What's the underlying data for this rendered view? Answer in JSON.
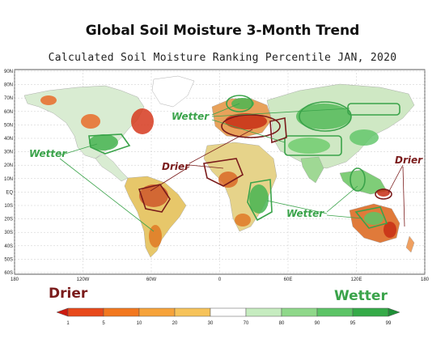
{
  "title": "Global Soil Moisture 3-Month Trend",
  "subtitle": "Calculated Soil Moisture Ranking Percentile JAN, 2020",
  "map": {
    "lat_ticks": [
      "90N",
      "80N",
      "70N",
      "60N",
      "50N",
      "40N",
      "30N",
      "20N",
      "10N",
      "EQ",
      "10S",
      "20S",
      "30S",
      "40S",
      "50S",
      "60S"
    ],
    "lon_ticks": [
      "180",
      "120W",
      "60W",
      "0",
      "60E",
      "120E",
      "180"
    ],
    "annotations": [
      {
        "text": "Wetter",
        "color": "#3aa34a"
      },
      {
        "text": "Wetter",
        "color": "#3aa34a"
      },
      {
        "text": "Drier",
        "color": "#7a1b1b"
      },
      {
        "text": "Drier",
        "color": "#7a1b1b"
      },
      {
        "text": "Wetter",
        "color": "#3aa34a"
      }
    ]
  },
  "legend": {
    "left_label": "Drier",
    "right_label": "Wetter",
    "left_color": "#7a1b1b",
    "right_color": "#3aa34a",
    "tick_labels": [
      "1",
      "5",
      "10",
      "20",
      "30",
      "70",
      "80",
      "90",
      "95",
      "99"
    ],
    "bins": [
      {
        "color": "#cc1a10"
      },
      {
        "color": "#e8491b"
      },
      {
        "color": "#f2781f"
      },
      {
        "color": "#f6a33a"
      },
      {
        "color": "#f6c35a"
      },
      {
        "color": "#ffffff"
      },
      {
        "color": "#c6ecc0"
      },
      {
        "color": "#8fd88a"
      },
      {
        "color": "#5cc466"
      },
      {
        "color": "#35ab48"
      },
      {
        "color": "#1e8f36"
      }
    ]
  }
}
